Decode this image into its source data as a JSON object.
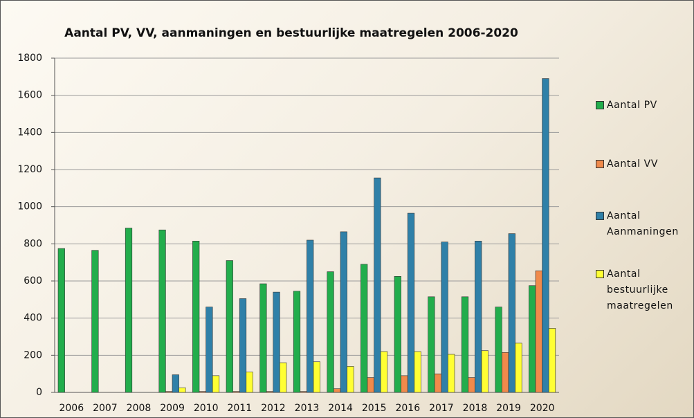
{
  "chart_data": {
    "type": "bar",
    "title": "Aantal PV, VV, aanmaningen en bestuurlijke maatregelen 2006-2020",
    "categories": [
      "2006",
      "2007",
      "2008",
      "2009",
      "2010",
      "2011",
      "2012",
      "2013",
      "2014",
      "2015",
      "2016",
      "2017",
      "2018",
      "2019",
      "2020"
    ],
    "series": [
      {
        "name": "Aantal PV",
        "color": "#22ad4c",
        "values": [
          775,
          765,
          885,
          875,
          815,
          710,
          585,
          545,
          650,
          690,
          625,
          515,
          515,
          460,
          575
        ]
      },
      {
        "name": "Aantal VV",
        "color": "#f08a4b",
        "values": [
          null,
          null,
          null,
          5,
          5,
          5,
          5,
          5,
          20,
          80,
          90,
          100,
          80,
          215,
          655
        ]
      },
      {
        "name": "Aantal Aanmaningen",
        "color": "#2f80a8",
        "values": [
          null,
          null,
          null,
          95,
          460,
          505,
          540,
          820,
          865,
          1155,
          965,
          810,
          815,
          855,
          1690
        ]
      },
      {
        "name": "Aantal bestuurlijke maatregelen",
        "color": "#ffff33",
        "values": [
          null,
          null,
          null,
          25,
          90,
          110,
          160,
          165,
          140,
          220,
          220,
          205,
          225,
          265,
          345
        ]
      }
    ],
    "ylim": [
      0,
      1800
    ],
    "yticks": [
      0,
      200,
      400,
      600,
      800,
      1000,
      1200,
      1400,
      1600,
      1800
    ],
    "grid": true,
    "legend": "right"
  }
}
